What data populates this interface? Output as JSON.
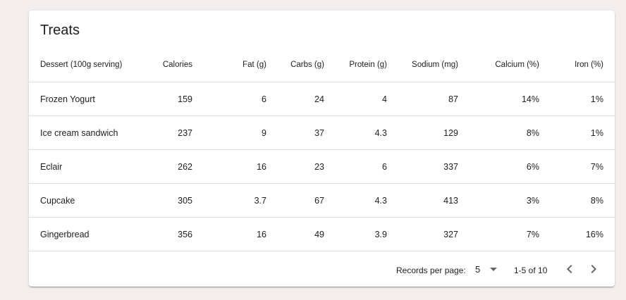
{
  "title": "Treats",
  "columns": [
    "Dessert (100g serving)",
    "Calories",
    "Fat (g)",
    "Carbs (g)",
    "Protein (g)",
    "Sodium (mg)",
    "Calcium (%)",
    "Iron (%)"
  ],
  "rows": [
    [
      "Frozen Yogurt",
      "159",
      "6",
      "24",
      "4",
      "87",
      "14%",
      "1%"
    ],
    [
      "Ice cream sandwich",
      "237",
      "9",
      "37",
      "4.3",
      "129",
      "8%",
      "1%"
    ],
    [
      "Eclair",
      "262",
      "16",
      "23",
      "6",
      "337",
      "6%",
      "7%"
    ],
    [
      "Cupcake",
      "305",
      "3.7",
      "67",
      "4.3",
      "413",
      "3%",
      "8%"
    ],
    [
      "Gingerbread",
      "356",
      "16",
      "49",
      "3.9",
      "327",
      "7%",
      "16%"
    ]
  ],
  "footer": {
    "records_per_page_label": "Records per page:",
    "records_per_page_value": "5",
    "range_text": "1-5 of 10",
    "prev_icon": "chevron-left-icon",
    "next_icon": "chevron-right-icon",
    "icon_color": "#666666"
  }
}
